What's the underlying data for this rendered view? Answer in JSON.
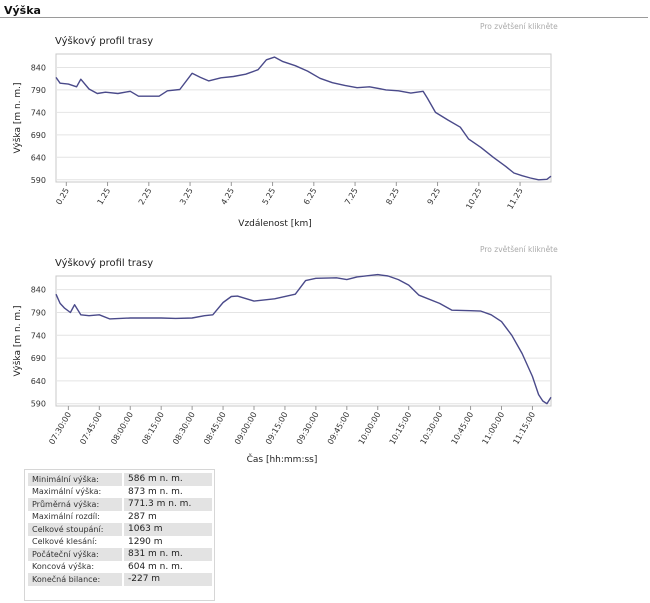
{
  "header": {
    "title": "Výška"
  },
  "charts": [
    {
      "hint": "Pro zvětšení klikněte"
    },
    {
      "hint": "Pro zvětšení klikněte"
    }
  ],
  "chart_data": [
    {
      "type": "line",
      "title": "Výškový profil trasy",
      "xlabel": "Vzdálenost [km]",
      "ylabel": "Výška [m n. m.]",
      "xlim": [
        0,
        12
      ],
      "ylim": [
        585,
        870
      ],
      "xticks": [
        "0.25",
        "1.25",
        "2.25",
        "3.25",
        "4.25",
        "5.25",
        "6.25",
        "7.25",
        "8.25",
        "9.25",
        "10.25",
        "11.25"
      ],
      "yticks": [
        "590",
        "640",
        "690",
        "740",
        "790",
        "840"
      ],
      "grid": true,
      "series": [
        {
          "color": "#4a4a8a",
          "x": [
            0,
            0.1,
            0.3,
            0.5,
            0.6,
            0.8,
            1.0,
            1.2,
            1.5,
            1.8,
            2.0,
            2.3,
            2.5,
            2.7,
            3.0,
            3.3,
            3.5,
            3.7,
            4.0,
            4.3,
            4.6,
            4.9,
            5.1,
            5.3,
            5.5,
            5.8,
            6.1,
            6.4,
            6.7,
            7.0,
            7.3,
            7.6,
            8.0,
            8.3,
            8.6,
            8.9,
            9.0,
            9.2,
            9.5,
            9.8,
            10.0,
            10.3,
            10.6,
            10.9,
            11.1,
            11.3,
            11.5,
            11.7,
            11.9,
            12.0
          ],
          "y": [
            818,
            805,
            803,
            797,
            814,
            792,
            782,
            785,
            782,
            787,
            776,
            776,
            776,
            788,
            791,
            827,
            818,
            810,
            817,
            820,
            825,
            835,
            857,
            863,
            853,
            844,
            832,
            816,
            806,
            800,
            795,
            797,
            790,
            788,
            783,
            787,
            772,
            740,
            723,
            707,
            681,
            662,
            640,
            620,
            605,
            599,
            594,
            590,
            591,
            598
          ]
        }
      ]
    },
    {
      "type": "line",
      "title": "Výškový profil trasy",
      "xlabel": "Čas  [hh:mm:ss]",
      "ylabel": "Výška [m n. m.]",
      "xlim": [
        "07:24:00",
        "11:24:00"
      ],
      "ylim": [
        585,
        870
      ],
      "xticks": [
        "07:30:00",
        "07:45:00",
        "08:00:00",
        "08:15:00",
        "08:30:00",
        "08:45:00",
        "09:00:00",
        "09:15:00",
        "09:30:00",
        "09:45:00",
        "10:00:00",
        "10:15:00",
        "10:30:00",
        "10:45:00",
        "11:00:00",
        "11:15:00"
      ],
      "yticks": [
        "590",
        "640",
        "690",
        "740",
        "790",
        "840"
      ],
      "grid": true,
      "series": [
        {
          "color": "#4a4a8a",
          "x": [
            "07:24:00",
            "07:26:00",
            "07:28:00",
            "07:31:00",
            "07:33:00",
            "07:36:00",
            "07:40:00",
            "07:45:00",
            "07:50:00",
            "08:00:00",
            "08:15:00",
            "08:22:00",
            "08:30:00",
            "08:36:00",
            "08:40:00",
            "08:45:00",
            "08:49:00",
            "08:52:00",
            "09:00:00",
            "09:10:00",
            "09:20:00",
            "09:25:00",
            "09:30:00",
            "09:40:00",
            "09:45:00",
            "09:50:00",
            "10:00:00",
            "10:05:00",
            "10:10:00",
            "10:15:00",
            "10:20:00",
            "10:30:00",
            "10:36:00",
            "10:45:00",
            "10:50:00",
            "10:55:00",
            "11:00:00",
            "11:05:00",
            "11:10:00",
            "11:15:00",
            "11:18:00",
            "11:20:00",
            "11:22:00",
            "11:24:00"
          ],
          "y": [
            830,
            810,
            800,
            790,
            807,
            785,
            783,
            785,
            776,
            778,
            778,
            777,
            778,
            783,
            785,
            812,
            825,
            826,
            815,
            820,
            830,
            860,
            865,
            866,
            862,
            868,
            873,
            870,
            862,
            850,
            828,
            810,
            795,
            794,
            793,
            785,
            770,
            740,
            700,
            650,
            610,
            596,
            590,
            604
          ]
        }
      ]
    }
  ],
  "stats": [
    {
      "label": "Minimální výška:",
      "value": "586 m n. m."
    },
    {
      "label": "Maximální výška:",
      "value": "873 m n. m."
    },
    {
      "label": "Průměrná výška:",
      "value": "771.3 m n. m."
    },
    {
      "label": "Maximální rozdíl:",
      "value": "287 m"
    },
    {
      "label": "Celkové stoupání:",
      "value": "1063 m"
    },
    {
      "label": "Celkové klesání:",
      "value": "1290 m"
    },
    {
      "label": "Počáteční výška:",
      "value": "831 m n. m."
    },
    {
      "label": "Koncová výška:",
      "value": "604 m n. m."
    },
    {
      "label": "Konečná bilance:",
      "value": "-227 m"
    }
  ]
}
